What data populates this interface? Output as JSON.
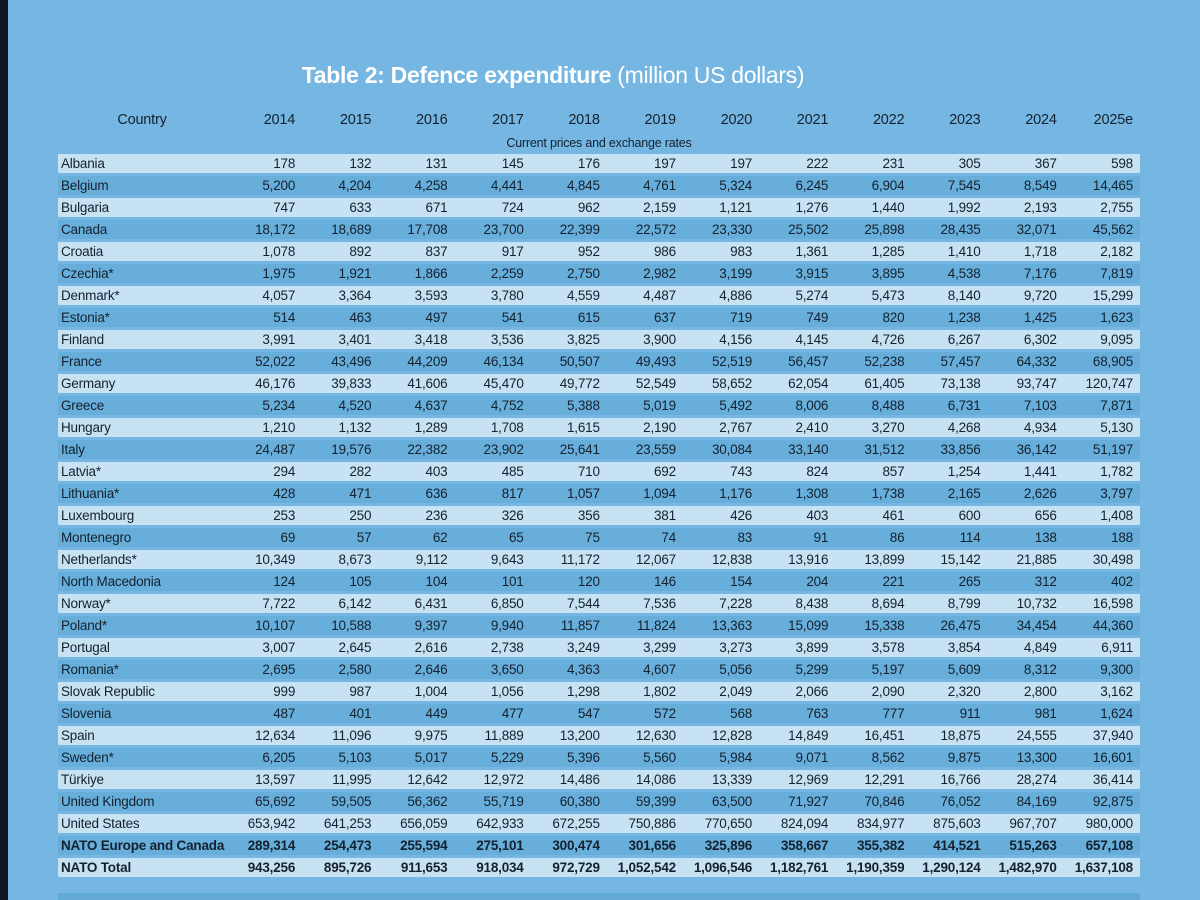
{
  "title": {
    "main": "Table 2: Defence expenditure",
    "unit": "(million US dollars)"
  },
  "colors": {
    "page_background": "#75b7e2",
    "row_light": "#c7e2f3",
    "row_dark": "#67aedb",
    "text": "#14212e",
    "title_text": "#ffffff",
    "left_edge": "#0d1722",
    "bottom_strip": "#62a9d6"
  },
  "chart_data": {
    "type": "table",
    "title": "Table 2: Defence expenditure (million US dollars)",
    "section_header": "Current prices and exchange rates",
    "columns": [
      "Country",
      "2014",
      "2015",
      "2016",
      "2017",
      "2018",
      "2019",
      "2020",
      "2021",
      "2022",
      "2023",
      "2024",
      "2025e"
    ],
    "rows": [
      {
        "country": "Albania",
        "bold": false,
        "values": [
          "178",
          "132",
          "131",
          "145",
          "176",
          "197",
          "197",
          "222",
          "231",
          "305",
          "367",
          "598"
        ]
      },
      {
        "country": "Belgium",
        "bold": false,
        "values": [
          "5,200",
          "4,204",
          "4,258",
          "4,441",
          "4,845",
          "4,761",
          "5,324",
          "6,245",
          "6,904",
          "7,545",
          "8,549",
          "14,465"
        ]
      },
      {
        "country": "Bulgaria",
        "bold": false,
        "values": [
          "747",
          "633",
          "671",
          "724",
          "962",
          "2,159",
          "1,121",
          "1,276",
          "1,440",
          "1,992",
          "2,193",
          "2,755"
        ]
      },
      {
        "country": "Canada",
        "bold": false,
        "values": [
          "18,172",
          "18,689",
          "17,708",
          "23,700",
          "22,399",
          "22,572",
          "23,330",
          "25,502",
          "25,898",
          "28,435",
          "32,071",
          "45,562"
        ]
      },
      {
        "country": "Croatia",
        "bold": false,
        "values": [
          "1,078",
          "892",
          "837",
          "917",
          "952",
          "986",
          "983",
          "1,361",
          "1,285",
          "1,410",
          "1,718",
          "2,182"
        ]
      },
      {
        "country": "Czechia*",
        "bold": false,
        "values": [
          "1,975",
          "1,921",
          "1,866",
          "2,259",
          "2,750",
          "2,982",
          "3,199",
          "3,915",
          "3,895",
          "4,538",
          "7,176",
          "7,819"
        ]
      },
      {
        "country": "Denmark*",
        "bold": false,
        "values": [
          "4,057",
          "3,364",
          "3,593",
          "3,780",
          "4,559",
          "4,487",
          "4,886",
          "5,274",
          "5,473",
          "8,140",
          "9,720",
          "15,299"
        ]
      },
      {
        "country": "Estonia*",
        "bold": false,
        "values": [
          "514",
          "463",
          "497",
          "541",
          "615",
          "637",
          "719",
          "749",
          "820",
          "1,238",
          "1,425",
          "1,623"
        ]
      },
      {
        "country": "Finland",
        "bold": false,
        "values": [
          "3,991",
          "3,401",
          "3,418",
          "3,536",
          "3,825",
          "3,900",
          "4,156",
          "4,145",
          "4,726",
          "6,267",
          "6,302",
          "9,095"
        ]
      },
      {
        "country": "France",
        "bold": false,
        "values": [
          "52,022",
          "43,496",
          "44,209",
          "46,134",
          "50,507",
          "49,493",
          "52,519",
          "56,457",
          "52,238",
          "57,457",
          "64,332",
          "68,905"
        ]
      },
      {
        "country": "Germany",
        "bold": false,
        "values": [
          "46,176",
          "39,833",
          "41,606",
          "45,470",
          "49,772",
          "52,549",
          "58,652",
          "62,054",
          "61,405",
          "73,138",
          "93,747",
          "120,747"
        ]
      },
      {
        "country": "Greece",
        "bold": false,
        "values": [
          "5,234",
          "4,520",
          "4,637",
          "4,752",
          "5,388",
          "5,019",
          "5,492",
          "8,006",
          "8,488",
          "6,731",
          "7,103",
          "7,871"
        ]
      },
      {
        "country": "Hungary",
        "bold": false,
        "values": [
          "1,210",
          "1,132",
          "1,289",
          "1,708",
          "1,615",
          "2,190",
          "2,767",
          "2,410",
          "3,270",
          "4,268",
          "4,934",
          "5,130"
        ]
      },
      {
        "country": "Italy",
        "bold": false,
        "values": [
          "24,487",
          "19,576",
          "22,382",
          "23,902",
          "25,641",
          "23,559",
          "30,084",
          "33,140",
          "31,512",
          "33,856",
          "36,142",
          "51,197"
        ]
      },
      {
        "country": "Latvia*",
        "bold": false,
        "values": [
          "294",
          "282",
          "403",
          "485",
          "710",
          "692",
          "743",
          "824",
          "857",
          "1,254",
          "1,441",
          "1,782"
        ]
      },
      {
        "country": "Lithuania*",
        "bold": false,
        "values": [
          "428",
          "471",
          "636",
          "817",
          "1,057",
          "1,094",
          "1,176",
          "1,308",
          "1,738",
          "2,165",
          "2,626",
          "3,797"
        ]
      },
      {
        "country": "Luxembourg",
        "bold": false,
        "values": [
          "253",
          "250",
          "236",
          "326",
          "356",
          "381",
          "426",
          "403",
          "461",
          "600",
          "656",
          "1,408"
        ]
      },
      {
        "country": "Montenegro",
        "bold": false,
        "values": [
          "69",
          "57",
          "62",
          "65",
          "75",
          "74",
          "83",
          "91",
          "86",
          "114",
          "138",
          "188"
        ]
      },
      {
        "country": "Netherlands*",
        "bold": false,
        "values": [
          "10,349",
          "8,673",
          "9,112",
          "9,643",
          "11,172",
          "12,067",
          "12,838",
          "13,916",
          "13,899",
          "15,142",
          "21,885",
          "30,498"
        ]
      },
      {
        "country": "North Macedonia",
        "bold": false,
        "values": [
          "124",
          "105",
          "104",
          "101",
          "120",
          "146",
          "154",
          "204",
          "221",
          "265",
          "312",
          "402"
        ]
      },
      {
        "country": "Norway*",
        "bold": false,
        "values": [
          "7,722",
          "6,142",
          "6,431",
          "6,850",
          "7,544",
          "7,536",
          "7,228",
          "8,438",
          "8,694",
          "8,799",
          "10,732",
          "16,598"
        ]
      },
      {
        "country": "Poland*",
        "bold": false,
        "values": [
          "10,107",
          "10,588",
          "9,397",
          "9,940",
          "11,857",
          "11,824",
          "13,363",
          "15,099",
          "15,338",
          "26,475",
          "34,454",
          "44,360"
        ]
      },
      {
        "country": "Portugal",
        "bold": false,
        "values": [
          "3,007",
          "2,645",
          "2,616",
          "2,738",
          "3,249",
          "3,299",
          "3,273",
          "3,899",
          "3,578",
          "3,854",
          "4,849",
          "6,911"
        ]
      },
      {
        "country": "Romania*",
        "bold": false,
        "values": [
          "2,695",
          "2,580",
          "2,646",
          "3,650",
          "4,363",
          "4,607",
          "5,056",
          "5,299",
          "5,197",
          "5,609",
          "8,312",
          "9,300"
        ]
      },
      {
        "country": "Slovak Republic",
        "bold": false,
        "values": [
          "999",
          "987",
          "1,004",
          "1,056",
          "1,298",
          "1,802",
          "2,049",
          "2,066",
          "2,090",
          "2,320",
          "2,800",
          "3,162"
        ]
      },
      {
        "country": "Slovenia",
        "bold": false,
        "values": [
          "487",
          "401",
          "449",
          "477",
          "547",
          "572",
          "568",
          "763",
          "777",
          "911",
          "981",
          "1,624"
        ]
      },
      {
        "country": "Spain",
        "bold": false,
        "values": [
          "12,634",
          "11,096",
          "9,975",
          "11,889",
          "13,200",
          "12,630",
          "12,828",
          "14,849",
          "16,451",
          "18,875",
          "24,555",
          "37,940"
        ]
      },
      {
        "country": "Sweden*",
        "bold": false,
        "values": [
          "6,205",
          "5,103",
          "5,017",
          "5,229",
          "5,396",
          "5,560",
          "5,984",
          "9,071",
          "8,562",
          "9,875",
          "13,300",
          "16,601"
        ]
      },
      {
        "country": "Türkiye",
        "bold": false,
        "values": [
          "13,597",
          "11,995",
          "12,642",
          "12,972",
          "14,486",
          "14,086",
          "13,339",
          "12,969",
          "12,291",
          "16,766",
          "28,274",
          "36,414"
        ]
      },
      {
        "country": "United Kingdom",
        "bold": false,
        "values": [
          "65,692",
          "59,505",
          "56,362",
          "55,719",
          "60,380",
          "59,399",
          "63,500",
          "71,927",
          "70,846",
          "76,052",
          "84,169",
          "92,875"
        ]
      },
      {
        "country": "United States",
        "bold": false,
        "values": [
          "653,942",
          "641,253",
          "656,059",
          "642,933",
          "672,255",
          "750,886",
          "770,650",
          "824,094",
          "834,977",
          "875,603",
          "967,707",
          "980,000"
        ]
      },
      {
        "country": "NATO Europe and Canada",
        "bold": true,
        "values": [
          "289,314",
          "254,473",
          "255,594",
          "275,101",
          "300,474",
          "301,656",
          "325,896",
          "358,667",
          "355,382",
          "414,521",
          "515,263",
          "657,108"
        ]
      },
      {
        "country": "NATO Total",
        "bold": true,
        "values": [
          "943,256",
          "895,726",
          "911,653",
          "918,034",
          "972,729",
          "1,052,542",
          "1,096,546",
          "1,182,761",
          "1,190,359",
          "1,290,124",
          "1,482,970",
          "1,637,108"
        ]
      }
    ]
  }
}
